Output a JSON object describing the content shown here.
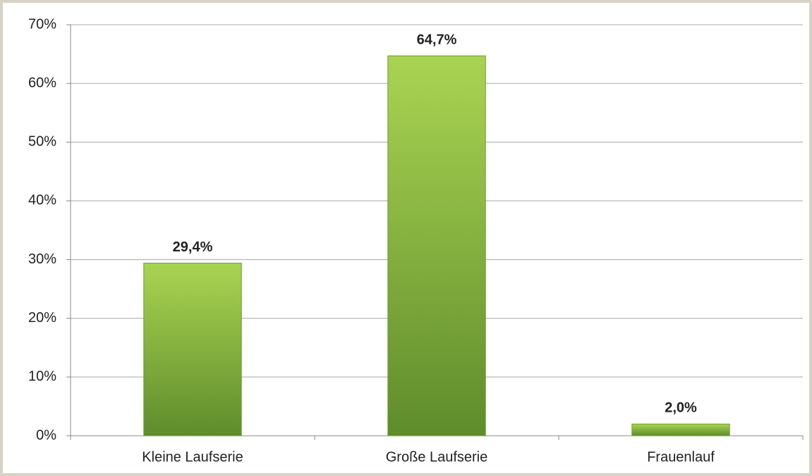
{
  "chart_data": {
    "type": "bar",
    "categories": [
      "Kleine Laufserie",
      "Große Laufserie",
      "Frauenlauf"
    ],
    "values": [
      29.4,
      64.7,
      2.0
    ],
    "value_labels": [
      "29,4%",
      "64,7%",
      "2,0%"
    ],
    "color": "#8cbf3f",
    "ylim": [
      0,
      70
    ],
    "yticks": [
      {
        "value": 0,
        "label": "0%"
      },
      {
        "value": 10,
        "label": "10%"
      },
      {
        "value": 20,
        "label": "20%"
      },
      {
        "value": 30,
        "label": "30%"
      },
      {
        "value": 40,
        "label": "40%"
      },
      {
        "value": 50,
        "label": "50%"
      },
      {
        "value": 60,
        "label": "60%"
      },
      {
        "value": 70,
        "label": "70%"
      }
    ],
    "grid": true
  }
}
